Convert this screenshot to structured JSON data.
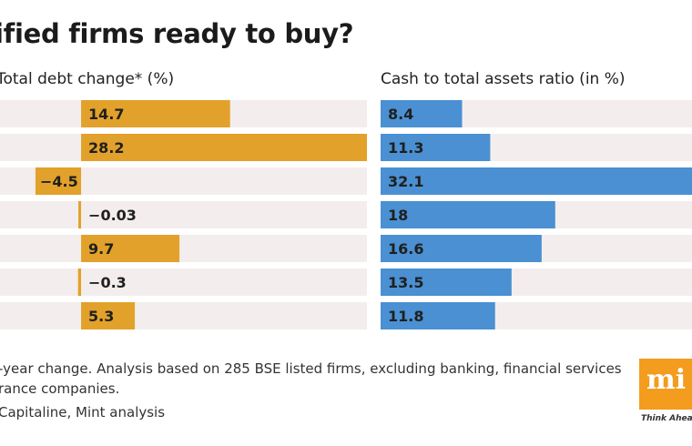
{
  "title": "ified firms ready to buy?",
  "chart_data": [
    {
      "type": "bar",
      "orientation": "horizontal",
      "title": "Total debt change* (%)",
      "values": [
        14.7,
        28.2,
        -4.5,
        -0.03,
        9.7,
        -0.3,
        5.3
      ],
      "data_labels": [
        "14.7",
        "28.2",
        "-4.5",
        "-0.03",
        "9.7",
        "-0.3",
        "5.3"
      ],
      "xlim": [
        -8,
        28.2
      ],
      "color": "#e2a12a",
      "grid": false
    },
    {
      "type": "bar",
      "orientation": "horizontal",
      "title": "Cash to total assets ratio (in %)",
      "values": [
        8.4,
        11.3,
        32.1,
        18,
        16.6,
        13.5,
        11.8
      ],
      "data_labels": [
        "8.4",
        "11.3",
        "32.1",
        "18",
        "16.6",
        "13.5",
        "11.8"
      ],
      "xlim": [
        0,
        32.1
      ],
      "color": "#4a90d2",
      "grid": false
    }
  ],
  "row_background": "#f3eeed",
  "footnote_line1": "-year change. Analysis based on 285 BSE listed firms, excluding banking, financial services",
  "footnote_line2": "rance companies.",
  "source": "Capitaline, Mint analysis",
  "logo": {
    "text": "mi",
    "tagline": "Think Ahead"
  }
}
